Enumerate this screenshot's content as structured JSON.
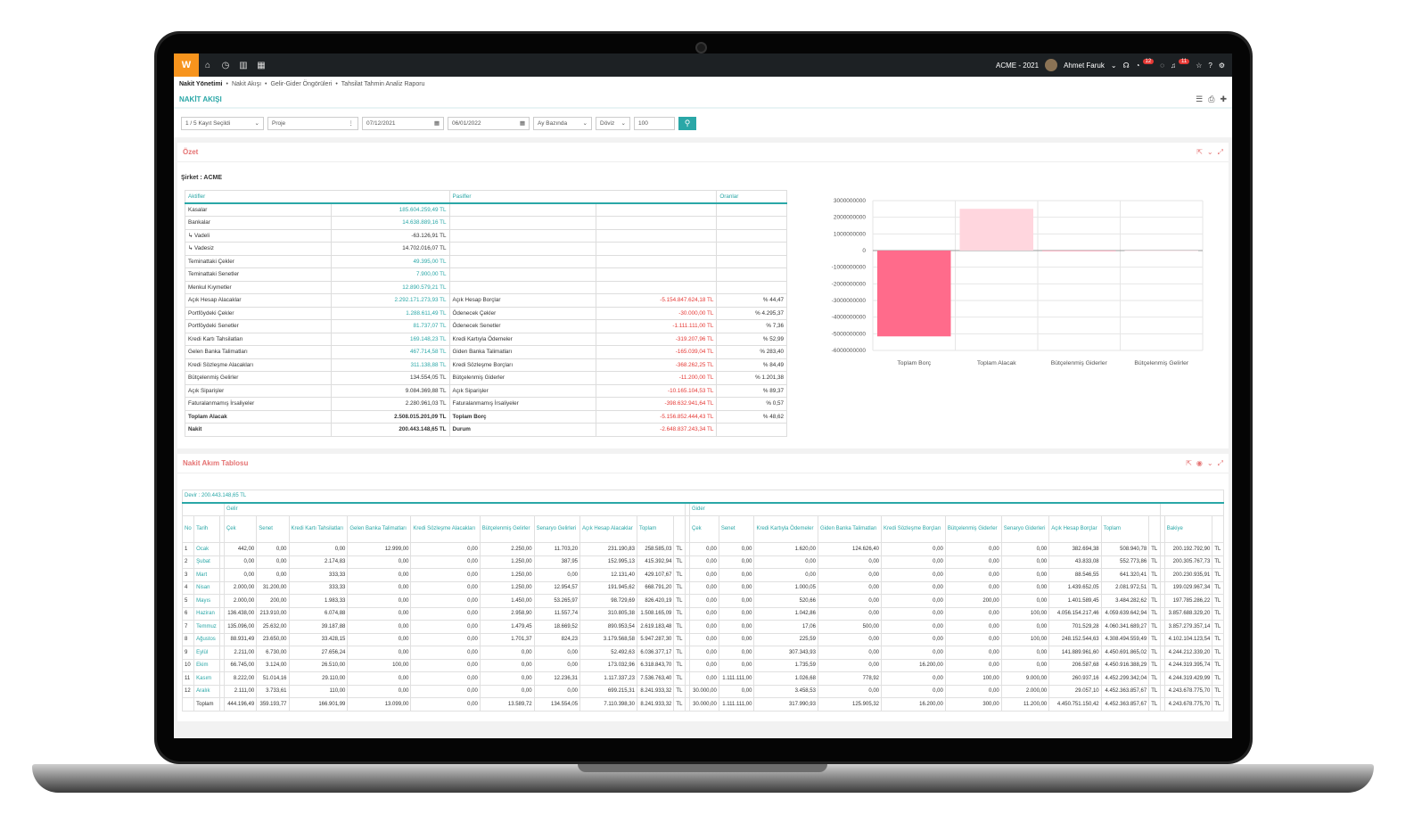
{
  "topbar": {
    "logo": "W",
    "company": "ACME - 2021",
    "user": "Ahmet Faruk",
    "badge1": "12",
    "badge2": "11"
  },
  "breadcrumb": [
    "Nakit Yönetimi",
    "Nakit Akışı",
    "Gelir-Gider Öngörüleri",
    "Tahsilat Tahmin Analiz Raporu"
  ],
  "page_title": "NAKİT AKIŞI",
  "filters": {
    "selection": "1 / 5 Kayıt Seçildi",
    "project": "Proje",
    "date_from": "07/12/2021",
    "date_to": "06/01/2022",
    "period": "Ay Bazında",
    "currency": "Döviz",
    "count": "100"
  },
  "summary": {
    "title": "Özet",
    "company": "Şirket : ACME",
    "headers": [
      "Aktifler",
      "Pasifler",
      "Oranlar"
    ],
    "rows": [
      [
        "Kasalar",
        "185.604.259,49 TL",
        "",
        "",
        "",
        "teal"
      ],
      [
        "Bankalar",
        "14.638.889,16 TL",
        "",
        "",
        "",
        "teal"
      ],
      [
        "↳ Vadeli",
        "-63.126,91 TL",
        "",
        "",
        "",
        ""
      ],
      [
        "↳ Vadesiz",
        "14.702.016,07 TL",
        "",
        "",
        "",
        ""
      ],
      [
        "Teminattaki Çekler",
        "49.395,00 TL",
        "",
        "",
        "",
        "teal"
      ],
      [
        "Teminattaki Senetler",
        "7.900,00 TL",
        "",
        "",
        "",
        "teal"
      ],
      [
        "Menkul Kıymetler",
        "12.890.579,21 TL",
        "",
        "",
        "",
        "teal"
      ],
      [
        "Açık Hesap Alacaklar",
        "2.292.171.273,93 TL",
        "Açık Hesap Borçlar",
        "-5.154.847.624,18 TL",
        "% 44,47",
        "teal"
      ],
      [
        "Portföydeki Çekler",
        "1.288.611,49 TL",
        "Ödenecek Çekler",
        "-30.000,00 TL",
        "% 4.295,37",
        "teal"
      ],
      [
        "Portföydeki Senetler",
        "81.737,07 TL",
        "Ödenecek Senetler",
        "-1.111.111,00 TL",
        "% 7,36",
        "teal"
      ],
      [
        "Kredi Kartı Tahsilatları",
        "169.148,23 TL",
        "Kredi Kartıyla Ödemeler",
        "-319.207,96 TL",
        "% 52,99",
        "teal"
      ],
      [
        "Gelen Banka Talimatları",
        "467.714,58 TL",
        "Giden Banka Talimatları",
        "-165.039,04 TL",
        "% 283,40",
        "teal"
      ],
      [
        "Kredi Sözleşme Alacakları",
        "311.138,88 TL",
        "Kredi Sözleşme Borçları",
        "-368.262,25 TL",
        "% 84,49",
        "teal"
      ],
      [
        "Bütçelenmiş Gelirler",
        "134.554,05 TL",
        "Bütçelenmiş Giderler",
        "-11.200,00 TL",
        "% 1.201,38",
        ""
      ],
      [
        "Açık Siparişler",
        "9.084.369,88 TL",
        "Açık Siparişler",
        "-10.165.104,53 TL",
        "% 89,37",
        ""
      ],
      [
        "Faturalanmamış İrsaliyeler",
        "2.280.961,03 TL",
        "Faturalanmamış İrsaliyeler",
        "-398.632.941,64 TL",
        "% 0,57",
        ""
      ],
      [
        "Toplam Alacak",
        "2.508.015.201,09 TL",
        "Toplam Borç",
        "-5.156.852.444,43 TL",
        "% 48,62",
        "bold"
      ],
      [
        "Nakit",
        "200.443.148,65 TL",
        "Durum",
        "-2.648.837.243,34 TL",
        "",
        "bold"
      ]
    ]
  },
  "chart_data": {
    "type": "bar",
    "categories": [
      "Toplam Borç",
      "Toplam Alacak",
      "Bütçelenmiş Giderler",
      "Bütçelenmiş Gelirler"
    ],
    "values": [
      -5156852444.43,
      2508015201.09,
      -11200,
      134554.05
    ],
    "colors": [
      "#ff6b8b",
      "#ffd6de",
      "#ff6b8b",
      "#ffd6de"
    ],
    "ylim": [
      -6000000000,
      3000000000
    ],
    "yticks": [
      "3000000000",
      "2000000000",
      "1000000000",
      "0",
      "-1000000000",
      "-2000000000",
      "-3000000000",
      "-4000000000",
      "-5000000000",
      "-6000000000"
    ],
    "grid": true
  },
  "cashflow": {
    "title": "Nakit Akım Tablosu",
    "devir": "Devir : 200.443.148,65 TL",
    "group_income": "Gelir",
    "group_expense": "Gider",
    "headers_left": [
      "No",
      "Tarih"
    ],
    "headers_income": [
      "Çek",
      "Senet",
      "Kredi Kartı Tahsilatları",
      "Gelen Banka Talimatları",
      "Kredi Sözleşme Alacakları",
      "Bütçelenmiş Gelirler",
      "Senaryo Gelirleri",
      "Açık Hesap Alacaklar",
      "Toplam"
    ],
    "headers_expense": [
      "Çek",
      "Senet",
      "Kredi Kartıyla Ödemeler",
      "Giden Banka Talimatları",
      "Kredi Sözleşme Borçları",
      "Bütçelenmiş Giderler",
      "Senaryo Giderleri",
      "Açık Hesap Borçlar",
      "Toplam"
    ],
    "header_balance": "Bakiye",
    "unit": "TL",
    "rows": [
      [
        "1",
        "Ocak",
        [
          "442,00",
          "0,00",
          "0,00",
          "12.999,00",
          "0,00",
          "2.250,00",
          "11.703,20",
          "231.190,83",
          "258.585,03"
        ],
        [
          "0,00",
          "0,00",
          "1.620,00",
          "124.626,40",
          "0,00",
          "0,00",
          "0,00",
          "382.694,38",
          "508.940,78"
        ],
        "200.192.792,90"
      ],
      [
        "2",
        "Şubat",
        [
          "0,00",
          "0,00",
          "2.174,83",
          "0,00",
          "0,00",
          "1.250,00",
          "387,95",
          "152.995,13",
          "415.392,94"
        ],
        [
          "0,00",
          "0,00",
          "0,00",
          "0,00",
          "0,00",
          "0,00",
          "0,00",
          "43.833,08",
          "552.773,86"
        ],
        "200.305.767,73"
      ],
      [
        "3",
        "Mart",
        [
          "0,00",
          "0,00",
          "333,33",
          "0,00",
          "0,00",
          "1.250,00",
          "0,00",
          "12.131,40",
          "429.107,67"
        ],
        [
          "0,00",
          "0,00",
          "0,00",
          "0,00",
          "0,00",
          "0,00",
          "0,00",
          "88.546,55",
          "641.320,41"
        ],
        "200.230.935,91"
      ],
      [
        "4",
        "Nisan",
        [
          "2.000,00",
          "31.200,00",
          "333,33",
          "0,00",
          "0,00",
          "1.250,00",
          "12.954,57",
          "191.945,62",
          "668.791,20"
        ],
        [
          "0,00",
          "0,00",
          "1.000,05",
          "0,00",
          "0,00",
          "0,00",
          "0,00",
          "1.439.652,05",
          "2.081.972,51"
        ],
        "199.029.967,34"
      ],
      [
        "5",
        "Mayıs",
        [
          "2.000,00",
          "200,00",
          "1.983,33",
          "0,00",
          "0,00",
          "1.450,00",
          "53.265,97",
          "98.729,69",
          "826.420,19"
        ],
        [
          "0,00",
          "0,00",
          "520,66",
          "0,00",
          "0,00",
          "200,00",
          "0,00",
          "1.401.589,45",
          "3.484.282,62"
        ],
        "197.785.286,22"
      ],
      [
        "6",
        "Haziran",
        [
          "136.438,00",
          "213.910,00",
          "6.074,88",
          "0,00",
          "0,00",
          "2.958,90",
          "11.557,74",
          "310.805,38",
          "1.508.165,09"
        ],
        [
          "0,00",
          "0,00",
          "1.042,86",
          "0,00",
          "0,00",
          "0,00",
          "100,00",
          "4.056.154.217,46",
          "4.059.639.642,94"
        ],
        "3.857.688.329,20"
      ],
      [
        "7",
        "Temmuz",
        [
          "135.096,00",
          "25.632,00",
          "39.187,88",
          "0,00",
          "0,00",
          "1.479,45",
          "18.669,52",
          "890.953,54",
          "2.619.183,48"
        ],
        [
          "0,00",
          "0,00",
          "17,06",
          "500,00",
          "0,00",
          "0,00",
          "0,00",
          "701.529,28",
          "4.060.341.689,27"
        ],
        "3.857.279.357,14"
      ],
      [
        "8",
        "Ağustos",
        [
          "88.931,49",
          "23.650,00",
          "33.428,15",
          "0,00",
          "0,00",
          "1.701,37",
          "824,23",
          "3.179.568,58",
          "5.947.287,30"
        ],
        [
          "0,00",
          "0,00",
          "225,59",
          "0,00",
          "0,00",
          "0,00",
          "100,00",
          "248.152.544,63",
          "4.308.494.559,49"
        ],
        "4.102.104.123,54"
      ],
      [
        "9",
        "Eylül",
        [
          "2.211,00",
          "6.730,00",
          "27.656,24",
          "0,00",
          "0,00",
          "0,00",
          "0,00",
          "52.492,63",
          "6.036.377,17"
        ],
        [
          "0,00",
          "0,00",
          "307.343,93",
          "0,00",
          "0,00",
          "0,00",
          "0,00",
          "141.889.961,60",
          "4.450.691.865,02"
        ],
        "4.244.212.339,20"
      ],
      [
        "10",
        "Ekim",
        [
          "66.745,00",
          "3.124,00",
          "26.510,00",
          "100,00",
          "0,00",
          "0,00",
          "0,00",
          "173.032,96",
          "6.318.843,70"
        ],
        [
          "0,00",
          "0,00",
          "1.735,59",
          "0,00",
          "16.200,00",
          "0,00",
          "0,00",
          "206.587,68",
          "4.450.916.388,29"
        ],
        "4.244.319.395,74"
      ],
      [
        "11",
        "Kasım",
        [
          "8.222,00",
          "51.014,16",
          "29.110,00",
          "0,00",
          "0,00",
          "0,00",
          "12.236,31",
          "1.117.337,23",
          "7.536.763,40"
        ],
        [
          "0,00",
          "1.111.111,00",
          "1.026,68",
          "778,92",
          "0,00",
          "100,00",
          "9.000,00",
          "260.937,16",
          "4.452.299.342,04"
        ],
        "4.244.319.429,99"
      ],
      [
        "12",
        "Aralık",
        [
          "2.111,00",
          "3.733,61",
          "110,00",
          "0,00",
          "0,00",
          "0,00",
          "0,00",
          "699.215,31",
          "8.241.933,32"
        ],
        [
          "30.000,00",
          "0,00",
          "3.458,53",
          "0,00",
          "0,00",
          "0,00",
          "2.000,00",
          "29.057,10",
          "4.452.363.857,67"
        ],
        "4.243.678.775,70"
      ]
    ],
    "total": [
      "",
      "Toplam",
      [
        "444.196,49",
        "359.193,77",
        "166.901,99",
        "13.099,00",
        "0,00",
        "13.589,72",
        "134.554,05",
        "7.110.398,30",
        "8.241.933,32"
      ],
      [
        "30.000,00",
        "1.111.111,00",
        "317.990,93",
        "125.905,32",
        "16.200,00",
        "300,00",
        "11.200,00",
        "4.450.751.150,42",
        "4.452.363.857,67"
      ],
      "4.243.678.775,70"
    ]
  }
}
